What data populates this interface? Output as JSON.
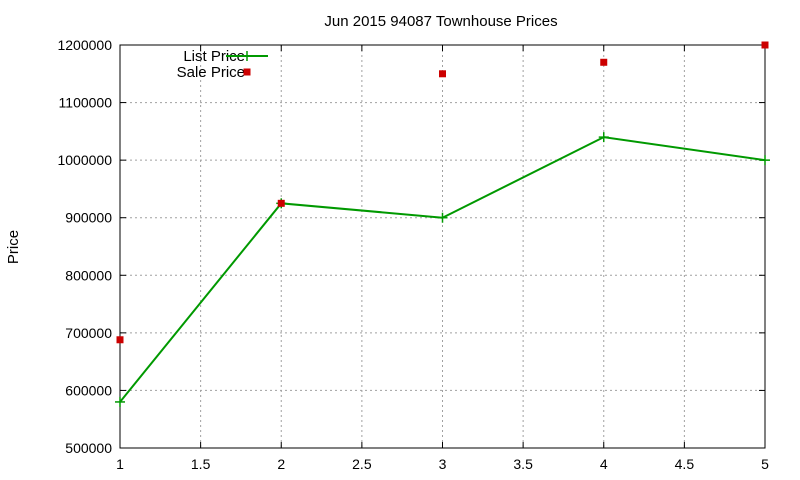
{
  "chart_data": {
    "type": "line",
    "title": "Jun 2015 94087 Townhouse Prices",
    "xlabel": "",
    "ylabel": "Price",
    "xlim": [
      1,
      5
    ],
    "ylim": [
      500000,
      1200000
    ],
    "x_ticks": [
      "1",
      "1.5",
      "2",
      "2.5",
      "3",
      "3.5",
      "4",
      "4.5",
      "5"
    ],
    "y_ticks": [
      "500000",
      "600000",
      "700000",
      "800000",
      "900000",
      "1000000",
      "1100000",
      "1200000"
    ],
    "grid": true,
    "legend_position": "top-left",
    "series": [
      {
        "name": "List Price",
        "style": "linespoints",
        "color": "#009900",
        "x": [
          1,
          2,
          3,
          4,
          5
        ],
        "values": [
          580000,
          925000,
          900000,
          1040000,
          1000000
        ]
      },
      {
        "name": "Sale Price",
        "style": "points",
        "color": "#cc0000",
        "x": [
          1,
          2,
          3,
          4,
          5
        ],
        "values": [
          688000,
          925000,
          1150000,
          1170000,
          1200000
        ]
      }
    ]
  }
}
